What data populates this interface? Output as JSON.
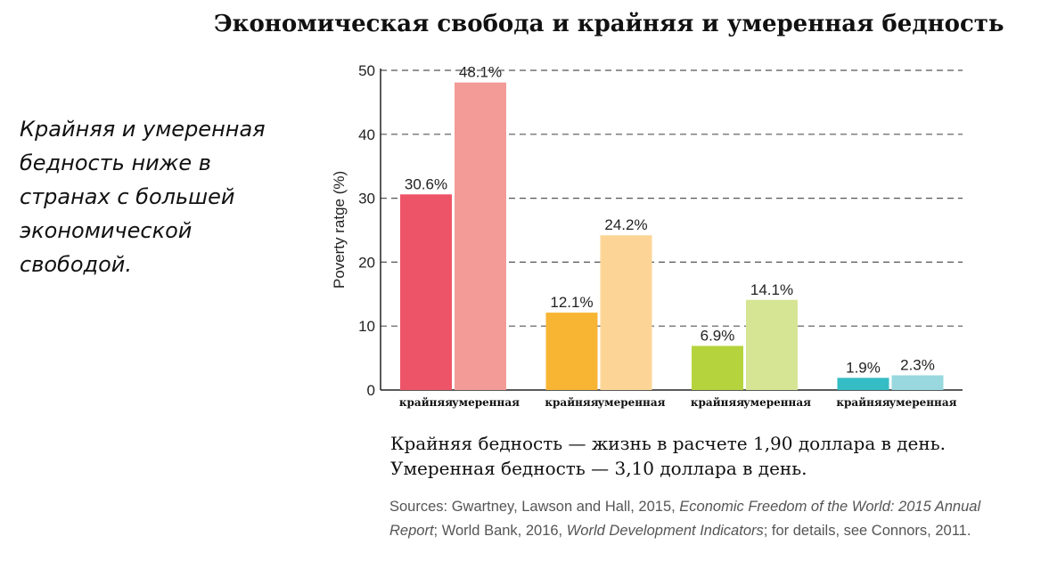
{
  "title": "Экономическая свобода и крайняя и умеренная бедность",
  "side_note": [
    "Крайняя и умеренная",
    "бедность ниже в",
    "странах с большей",
    "экономической",
    "свободой."
  ],
  "definitions": [
    "Крайняя бедность — жизнь в расчете 1,90 доллара в день.",
    "Умеренная бедность — 3,10 доллара в день."
  ],
  "sources": {
    "prefix": "Sources: Gwartney, Lawson and Hall, 2015, ",
    "title1": "Economic Freedom of the World: 2015 Annual Report",
    "mid": "; World Bank, 2016, ",
    "title2": "World Development Indicators",
    "suffix": "; for details, see Connors, 2011."
  },
  "chart_data": {
    "type": "bar",
    "ylabel": "Poverty ratge (%)",
    "ylim": [
      0,
      50
    ],
    "yticks": [
      0,
      10,
      20,
      30,
      40,
      50
    ],
    "grid": "dashed horizontal",
    "groups": [
      {
        "bars": [
          {
            "label": "крайняя",
            "value": 30.6,
            "value_label": "30.6%",
            "color": "#ee5468"
          },
          {
            "label": "умеренная",
            "value": 48.1,
            "value_label": "48.1%",
            "color": "#f29b97"
          }
        ]
      },
      {
        "bars": [
          {
            "label": "крайняя",
            "value": 12.1,
            "value_label": "12.1%",
            "color": "#f8b533"
          },
          {
            "label": "умеренная",
            "value": 24.2,
            "value_label": "24.2%",
            "color": "#fcd596"
          }
        ]
      },
      {
        "bars": [
          {
            "label": "крайняя",
            "value": 6.9,
            "value_label": "6.9%",
            "color": "#b5d33d"
          },
          {
            "label": "умеренная",
            "value": 14.1,
            "value_label": "14.1%",
            "color": "#d6e594"
          }
        ]
      },
      {
        "bars": [
          {
            "label": "крайняя",
            "value": 1.9,
            "value_label": "1.9%",
            "color": "#34bdc4"
          },
          {
            "label": "умеренная",
            "value": 2.3,
            "value_label": "2.3%",
            "color": "#98d8de"
          }
        ]
      }
    ]
  }
}
